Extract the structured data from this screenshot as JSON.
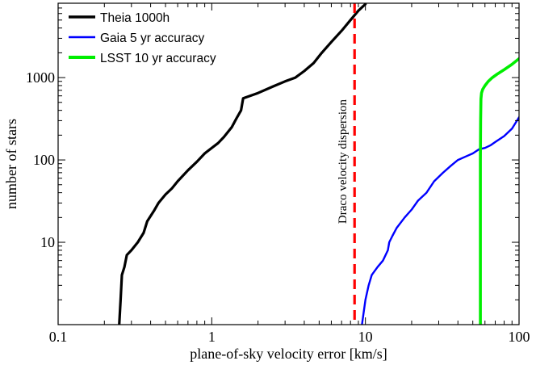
{
  "chart_data": {
    "type": "line",
    "title": "",
    "xlabel": "plane-of-sky velocity error [km/s]",
    "ylabel": "number of stars",
    "xscale": "log",
    "yscale": "log",
    "xlim": [
      0.1,
      100
    ],
    "ylim": [
      1,
      8000
    ],
    "x_ticks": [
      {
        "value": 0.1,
        "label": "0.1"
      },
      {
        "value": 1,
        "label": "1"
      },
      {
        "value": 10,
        "label": "10"
      },
      {
        "value": 100,
        "label": "100"
      }
    ],
    "y_ticks": [
      {
        "value": 10,
        "label": "10"
      },
      {
        "value": 100,
        "label": "100"
      },
      {
        "value": 1000,
        "label": "1000"
      }
    ],
    "grid": false,
    "legend_position": "top-left",
    "series": [
      {
        "name": "Theia 1000h",
        "color": "#000000",
        "x": [
          0.25,
          0.255,
          0.26,
          0.27,
          0.28,
          0.3,
          0.33,
          0.36,
          0.38,
          0.42,
          0.45,
          0.5,
          0.55,
          0.6,
          0.7,
          0.8,
          0.9,
          1.0,
          1.1,
          1.2,
          1.35,
          1.45,
          1.55,
          1.6,
          2.0,
          2.5,
          3.0,
          3.5,
          4.0,
          4.6,
          5.2,
          6.0,
          7.0,
          8.0,
          9.0,
          10.0
        ],
        "y": [
          1,
          2,
          4,
          5,
          7,
          8,
          10,
          13,
          18,
          24,
          30,
          38,
          45,
          55,
          75,
          95,
          120,
          140,
          160,
          190,
          250,
          320,
          400,
          560,
          650,
          780,
          900,
          1000,
          1200,
          1500,
          2000,
          2700,
          3700,
          5000,
          6500,
          7800
        ]
      },
      {
        "name": "Gaia 5 yr accuracy",
        "color": "#0000ff",
        "x": [
          9.5,
          10.0,
          10.5,
          11.0,
          12.0,
          13.0,
          14.0,
          14.3,
          15.0,
          16.0,
          18.0,
          20.0,
          22.0,
          25.0,
          28.0,
          32.0,
          36.0,
          40.0,
          45.0,
          50.0,
          55.0,
          60.0,
          65.0,
          70.0,
          80.0,
          90.0,
          100.0
        ],
        "y": [
          1,
          2,
          3,
          4,
          5,
          6,
          8,
          10,
          12,
          15,
          20,
          25,
          32,
          40,
          55,
          70,
          85,
          100,
          110,
          120,
          135,
          140,
          150,
          165,
          195,
          240,
          330
        ]
      },
      {
        "name": "LSST 10 yr accuracy",
        "color": "#00ee00",
        "x": [
          56.0,
          56.0,
          56.2,
          56.5,
          57.0,
          58.0,
          60.0,
          63.0,
          67.0,
          72.0,
          80.0,
          90.0,
          100.0
        ],
        "y": [
          1,
          100,
          300,
          550,
          650,
          720,
          800,
          900,
          1000,
          1100,
          1250,
          1450,
          1700
        ]
      }
    ],
    "annotations": [
      {
        "type": "vertical_line",
        "x": 8.5,
        "color": "#ff0000",
        "style": "dashed",
        "label": "Draco velocity dispersion"
      }
    ]
  }
}
